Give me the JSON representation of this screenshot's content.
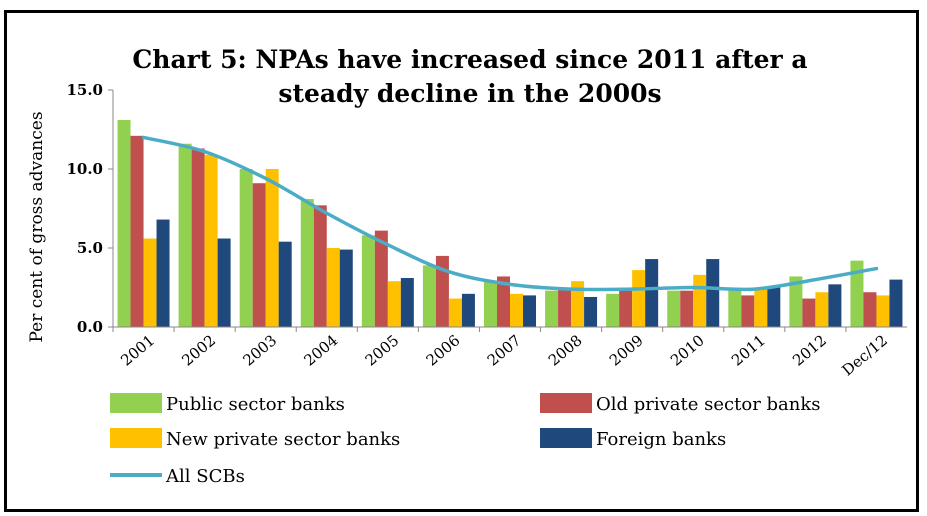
{
  "chart_data": {
    "type": "bar",
    "title_lines": [
      "Chart 5: NPAs have increased since 2011 after a",
      "steady decline in the 2000s"
    ],
    "ylabel": "Per cent of gross advances",
    "xlabel": "",
    "ylim": [
      0,
      15
    ],
    "yticks": [
      "0.0",
      "5.0",
      "10.0",
      "15.0"
    ],
    "categories": [
      "2001",
      "2002",
      "2003",
      "2004",
      "2005",
      "2006",
      "2007",
      "2008",
      "2009",
      "2010",
      "2011",
      "2012",
      "Dec/12"
    ],
    "series": [
      {
        "name": "Public sector banks",
        "color": "#92d050",
        "values": [
          13.1,
          11.6,
          10.0,
          8.1,
          5.8,
          3.9,
          2.9,
          2.3,
          2.1,
          2.3,
          2.5,
          3.2,
          4.2
        ]
      },
      {
        "name": "Old private sector banks",
        "color": "#c0504d",
        "values": [
          12.1,
          11.3,
          9.1,
          7.7,
          6.1,
          4.5,
          3.2,
          2.4,
          2.4,
          2.3,
          2.0,
          1.8,
          2.2
        ]
      },
      {
        "name": "New private sector banks",
        "color": "#ffc000",
        "values": [
          5.6,
          10.9,
          10.0,
          5.0,
          2.9,
          1.8,
          2.1,
          2.9,
          3.6,
          3.3,
          2.5,
          2.2,
          2.0
        ]
      },
      {
        "name": "Foreign banks",
        "color": "#1f497d",
        "values": [
          6.8,
          5.6,
          5.4,
          4.9,
          3.1,
          2.1,
          2.0,
          1.9,
          4.3,
          4.3,
          2.5,
          2.7,
          3.0
        ]
      }
    ],
    "line_series": {
      "name": "All SCBs",
      "color": "#4bacc6",
      "values": [
        12.0,
        11.1,
        9.4,
        7.2,
        5.2,
        3.5,
        2.7,
        2.4,
        2.4,
        2.5,
        2.4,
        3.0,
        3.7
      ]
    },
    "legend": "bottom",
    "grid": false
  }
}
